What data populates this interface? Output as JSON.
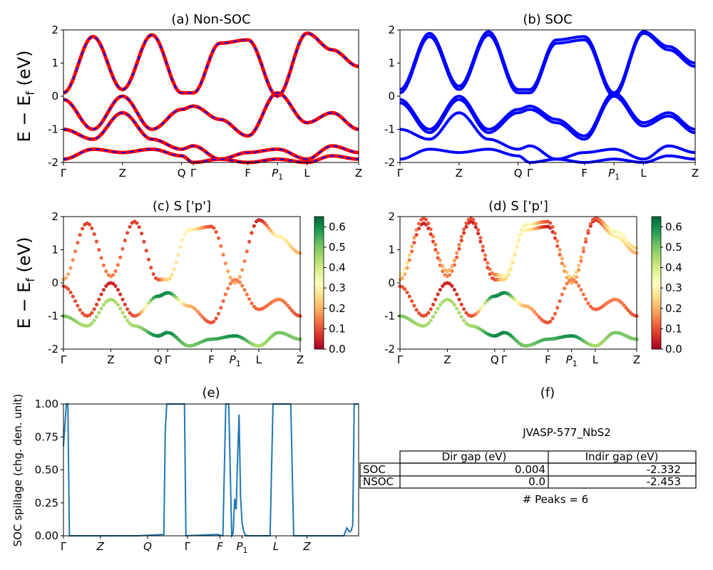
{
  "colors": {
    "nonsoc": "#ff0000",
    "nonsoc_dash": "#0000ff",
    "soc": "#0000ff",
    "spillage": "#1f77b4"
  },
  "chart_data": [
    {
      "id": "a",
      "type": "line",
      "title": "(a) Non-SOC",
      "ylabel_base": "E − E",
      "ylabel_sub": "f",
      "ylabel_unit": " (eV)",
      "ylim": [
        -2,
        2
      ],
      "yticks": [
        -2,
        -1,
        0,
        1,
        2
      ],
      "xticks": [
        "Γ",
        "Z",
        "Q",
        "Γ",
        "F",
        "P1",
        "L",
        "Z"
      ],
      "xtick_pos": [
        0,
        0.2,
        0.4,
        0.44,
        0.625,
        0.725,
        0.825,
        1.0
      ],
      "series": [
        {
          "style": "solid-red-with-blue-dash",
          "x": [
            0,
            0.1,
            0.2,
            0.3,
            0.4,
            0.44,
            0.53,
            0.625,
            0.725,
            0.825,
            0.91,
            1.0
          ],
          "y": [
            0.1,
            1.8,
            0.2,
            1.85,
            0.1,
            0.1,
            1.6,
            1.7,
            0.0,
            1.9,
            1.4,
            0.9
          ]
        },
        {
          "style": "solid-red-with-blue-dash",
          "x": [
            0,
            0.1,
            0.2,
            0.3,
            0.4,
            0.44,
            0.53,
            0.625,
            0.725,
            0.825,
            0.91,
            1.0
          ],
          "y": [
            -0.1,
            -1.0,
            0.0,
            -1.0,
            -0.4,
            -0.3,
            -0.7,
            -1.2,
            0.1,
            -0.8,
            -0.5,
            -1.0
          ]
        },
        {
          "style": "solid-red-with-blue-dash",
          "x": [
            0,
            0.1,
            0.2,
            0.3,
            0.4,
            0.44,
            0.53,
            0.625,
            0.725,
            0.825,
            0.91,
            1.0
          ],
          "y": [
            -1.0,
            -1.3,
            -0.5,
            -1.3,
            -1.6,
            -1.5,
            -1.9,
            -1.7,
            -1.6,
            -1.9,
            -1.5,
            -1.7
          ]
        },
        {
          "style": "solid-red-with-blue-dash",
          "x": [
            0,
            0.1,
            0.2,
            0.3,
            0.4,
            0.44,
            0.53,
            0.625,
            0.725,
            0.825,
            0.91,
            1.0
          ],
          "y": [
            -1.9,
            -1.6,
            -1.7,
            -1.6,
            -1.8,
            -2.0,
            -1.9,
            -2.0,
            -1.9,
            -2.0,
            -1.8,
            -1.9
          ]
        }
      ]
    },
    {
      "id": "b",
      "type": "line",
      "title": "(b) SOC",
      "ylim": [
        -2,
        2
      ],
      "yticks": [
        -2,
        -1,
        0,
        1,
        2
      ],
      "xticks": [
        "Γ",
        "Z",
        "Q",
        "Γ",
        "F",
        "P1",
        "L",
        "Z"
      ],
      "xtick_pos": [
        0,
        0.2,
        0.4,
        0.44,
        0.625,
        0.725,
        0.825,
        1.0
      ],
      "series": [
        {
          "style": "solid-blue",
          "x": [
            0,
            0.1,
            0.2,
            0.3,
            0.4,
            0.44,
            0.53,
            0.625,
            0.725,
            0.825,
            0.91,
            1.0
          ],
          "y": [
            0.1,
            1.8,
            0.2,
            1.85,
            0.1,
            0.1,
            1.6,
            1.7,
            0.0,
            1.9,
            1.4,
            0.9
          ]
        },
        {
          "style": "solid-blue",
          "x": [
            0,
            0.1,
            0.2,
            0.3,
            0.4,
            0.44,
            0.53,
            0.625,
            0.725,
            0.825,
            0.91,
            1.0
          ],
          "y": [
            0.2,
            1.9,
            0.3,
            1.95,
            0.2,
            0.2,
            1.7,
            1.8,
            0.1,
            1.95,
            1.5,
            1.0
          ]
        },
        {
          "style": "solid-blue",
          "x": [
            0,
            0.1,
            0.2,
            0.3,
            0.4,
            0.44,
            0.53,
            0.625,
            0.725,
            0.825,
            0.91,
            1.0
          ],
          "y": [
            -0.1,
            -1.0,
            0.0,
            -1.0,
            -0.4,
            -0.3,
            -0.7,
            -1.2,
            0.1,
            -0.8,
            -0.5,
            -1.0
          ]
        },
        {
          "style": "solid-blue",
          "x": [
            0,
            0.1,
            0.2,
            0.3,
            0.4,
            0.44,
            0.53,
            0.625,
            0.725,
            0.825,
            0.91,
            1.0
          ],
          "y": [
            -0.2,
            -1.1,
            -0.1,
            -1.1,
            -0.5,
            -0.4,
            -0.8,
            -1.3,
            0.0,
            -0.9,
            -0.6,
            -1.1
          ]
        },
        {
          "style": "solid-blue",
          "x": [
            0,
            0.1,
            0.2,
            0.3,
            0.4,
            0.44,
            0.53,
            0.625,
            0.725,
            0.825,
            0.91,
            1.0
          ],
          "y": [
            -1.0,
            -1.3,
            -0.5,
            -1.3,
            -1.6,
            -1.5,
            -1.9,
            -1.7,
            -1.6,
            -1.9,
            -1.5,
            -1.7
          ]
        },
        {
          "style": "solid-blue",
          "x": [
            0,
            0.1,
            0.2,
            0.3,
            0.4,
            0.44,
            0.53,
            0.625,
            0.725,
            0.825,
            0.91,
            1.0
          ],
          "y": [
            -1.9,
            -1.6,
            -1.7,
            -1.6,
            -1.8,
            -2.0,
            -1.9,
            -2.0,
            -1.9,
            -2.0,
            -1.8,
            -1.9
          ]
        }
      ]
    },
    {
      "id": "c",
      "type": "scatter",
      "title": "(c)  S ['p']",
      "ylabel_base": "E − E",
      "ylabel_sub": "f",
      "ylabel_unit": " (eV)",
      "ylim": [
        -2,
        2
      ],
      "yticks": [
        -2,
        -1,
        0,
        1,
        2
      ],
      "xticks": [
        "Γ",
        "Z",
        "Q",
        "Γ",
        "F",
        "P1",
        "L",
        "Z"
      ],
      "xtick_pos": [
        0,
        0.2,
        0.4,
        0.44,
        0.625,
        0.725,
        0.825,
        1.0
      ],
      "colorbar": {
        "min": 0.0,
        "max": 0.65,
        "ticks": [
          "0.0",
          "0.1",
          "0.2",
          "0.3",
          "0.4",
          "0.5",
          "0.6"
        ],
        "colormap": "RdYlGn"
      },
      "bands": [
        {
          "x": [
            0,
            0.1,
            0.2,
            0.3,
            0.4,
            0.44,
            0.53,
            0.625,
            0.725,
            0.825,
            0.91,
            1.0
          ],
          "y": [
            0.1,
            1.8,
            0.2,
            1.85,
            0.1,
            0.1,
            1.6,
            1.7,
            0.0,
            1.9,
            1.4,
            0.9
          ],
          "c": [
            0.2,
            0.08,
            0.15,
            0.08,
            0.1,
            0.25,
            0.3,
            0.1,
            0.2,
            0.05,
            0.3,
            0.2
          ]
        },
        {
          "x": [
            0,
            0.1,
            0.2,
            0.3,
            0.4,
            0.44,
            0.53,
            0.625,
            0.725,
            0.825,
            0.91,
            1.0
          ],
          "y": [
            -0.1,
            -1.0,
            0.0,
            -1.0,
            -0.4,
            -0.3,
            -0.7,
            -1.2,
            0.1,
            -0.8,
            -0.5,
            -1.0
          ],
          "c": [
            0.1,
            0.1,
            0.05,
            0.1,
            0.6,
            0.6,
            0.2,
            0.1,
            0.15,
            0.12,
            0.15,
            0.1
          ]
        },
        {
          "x": [
            0,
            0.1,
            0.2,
            0.3,
            0.4,
            0.44,
            0.53,
            0.625,
            0.725,
            0.825,
            0.91,
            1.0
          ],
          "y": [
            -1.0,
            -1.3,
            -0.5,
            -1.3,
            -1.6,
            -1.5,
            -1.9,
            -1.7,
            -1.6,
            -1.9,
            -1.5,
            -1.7
          ],
          "c": [
            0.5,
            0.45,
            0.45,
            0.45,
            0.6,
            0.6,
            0.5,
            0.55,
            0.6,
            0.45,
            0.5,
            0.5
          ]
        }
      ]
    },
    {
      "id": "d",
      "type": "scatter",
      "title": "(d) S ['p']",
      "ylim": [
        -2,
        2
      ],
      "yticks": [
        -2,
        -1,
        0,
        1,
        2
      ],
      "xticks": [
        "Γ",
        "Z",
        "Q",
        "Γ",
        "F",
        "P1",
        "L",
        "Z"
      ],
      "xtick_pos": [
        0,
        0.2,
        0.4,
        0.44,
        0.625,
        0.725,
        0.825,
        1.0
      ],
      "colorbar": {
        "min": 0.0,
        "max": 0.65,
        "ticks": [
          "0.0",
          "0.1",
          "0.2",
          "0.3",
          "0.4",
          "0.5",
          "0.6"
        ],
        "colormap": "RdYlGn"
      },
      "bands": [
        {
          "x": [
            0,
            0.1,
            0.2,
            0.3,
            0.4,
            0.44,
            0.53,
            0.625,
            0.725,
            0.825,
            0.91,
            1.0
          ],
          "y": [
            0.1,
            1.8,
            0.2,
            1.85,
            0.1,
            0.1,
            1.6,
            1.7,
            0.0,
            1.9,
            1.4,
            0.9
          ],
          "c": [
            0.2,
            0.05,
            0.15,
            0.05,
            0.1,
            0.25,
            0.3,
            0.05,
            0.2,
            0.05,
            0.3,
            0.2
          ]
        },
        {
          "x": [
            0,
            0.1,
            0.2,
            0.3,
            0.4,
            0.44,
            0.53,
            0.625,
            0.725,
            0.825,
            0.91,
            1.0
          ],
          "y": [
            0.25,
            1.95,
            0.35,
            1.95,
            0.25,
            0.2,
            1.75,
            1.85,
            0.15,
            1.95,
            1.55,
            1.05
          ],
          "c": [
            0.3,
            0.1,
            0.2,
            0.1,
            0.15,
            0.3,
            0.35,
            0.1,
            0.25,
            0.1,
            0.35,
            0.25
          ]
        },
        {
          "x": [
            0,
            0.1,
            0.2,
            0.3,
            0.4,
            0.44,
            0.53,
            0.625,
            0.725,
            0.825,
            0.91,
            1.0
          ],
          "y": [
            -0.1,
            -1.0,
            0.0,
            -1.0,
            -0.4,
            -0.3,
            -0.7,
            -1.2,
            0.1,
            -0.8,
            -0.5,
            -1.0
          ],
          "c": [
            0.1,
            0.1,
            0.05,
            0.1,
            0.6,
            0.6,
            0.2,
            0.1,
            0.15,
            0.12,
            0.15,
            0.1
          ]
        },
        {
          "x": [
            0,
            0.1,
            0.2,
            0.3,
            0.4,
            0.44,
            0.53,
            0.625,
            0.725,
            0.825,
            0.91,
            1.0
          ],
          "y": [
            -1.0,
            -1.3,
            -0.5,
            -1.3,
            -1.6,
            -1.5,
            -1.9,
            -1.7,
            -1.6,
            -1.9,
            -1.5,
            -1.7
          ],
          "c": [
            0.5,
            0.45,
            0.45,
            0.45,
            0.6,
            0.6,
            0.5,
            0.55,
            0.6,
            0.45,
            0.5,
            0.5
          ]
        }
      ]
    },
    {
      "id": "e",
      "type": "line",
      "title": "(e)",
      "ylabel": "SOC spillage (chg. den. unit)",
      "ylim": [
        0,
        1
      ],
      "yticks": [
        "0.00",
        "0.25",
        "0.50",
        "0.75",
        "1.00"
      ],
      "xticks": [
        "Γ",
        "Z",
        "Q",
        "Γ",
        "F",
        "P1",
        "L",
        "Z"
      ],
      "xtick_pos": [
        0.0,
        0.125,
        0.285,
        0.42,
        0.53,
        0.605,
        0.72,
        0.825
      ],
      "x": [
        0.0,
        0.01,
        0.015,
        0.02,
        0.03,
        0.2,
        0.25,
        0.34,
        0.345,
        0.35,
        0.37,
        0.41,
        0.415,
        0.52,
        0.54,
        0.55,
        0.56,
        0.57,
        0.575,
        0.58,
        0.585,
        0.59,
        0.595,
        0.6,
        0.605,
        0.61,
        0.615,
        0.62,
        0.63,
        0.7,
        0.71,
        0.72,
        0.77,
        0.78,
        0.79,
        0.95,
        0.96,
        0.97,
        0.975,
        0.98,
        0.985,
        1.0
      ],
      "y": [
        0.68,
        1.0,
        1.0,
        0.0,
        0.0,
        0.0,
        0.0,
        0.01,
        0.8,
        1.0,
        1.0,
        1.0,
        0.0,
        0.01,
        0.0,
        1.0,
        1.0,
        0.0,
        0.02,
        0.28,
        0.2,
        0.6,
        0.92,
        0.3,
        0.1,
        0.04,
        0.01,
        0.0,
        0.0,
        0.0,
        1.0,
        1.0,
        1.0,
        0.0,
        0.0,
        0.0,
        0.06,
        0.03,
        0.04,
        0.08,
        1.0,
        1.0
      ]
    },
    {
      "id": "f",
      "type": "table",
      "title": "(f)",
      "caption": "JVASP-577_NbS2",
      "columns": [
        "Dir gap (eV)",
        "Indir gap (eV)"
      ],
      "rows": [
        {
          "label": "SOC",
          "values": [
            "0.004",
            "-2.332"
          ]
        },
        {
          "label": "NSOC",
          "values": [
            "0.0",
            "-2.453"
          ]
        }
      ],
      "footer": "# Peaks = 6"
    }
  ]
}
